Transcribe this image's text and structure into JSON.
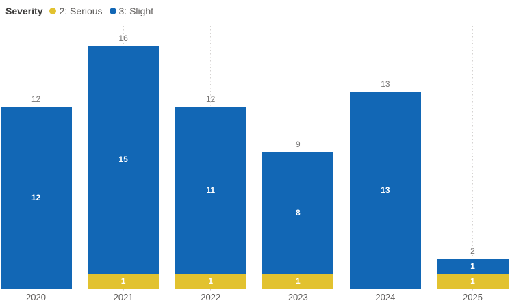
{
  "legend": {
    "title": "Severity",
    "items": [
      {
        "label": "2: Serious",
        "color": "#e2c22f"
      },
      {
        "label": "3: Slight",
        "color": "#1267b5"
      }
    ]
  },
  "chart_data": {
    "type": "bar",
    "stacked": true,
    "title": "",
    "xlabel": "",
    "ylabel": "",
    "categories": [
      "2020",
      "2021",
      "2022",
      "2023",
      "2024",
      "2025"
    ],
    "series": [
      {
        "name": "2: Serious",
        "color": "#e2c22f",
        "values": [
          0,
          1,
          1,
          1,
          0,
          1
        ]
      },
      {
        "name": "3: Slight",
        "color": "#1267b5",
        "values": [
          12,
          15,
          11,
          8,
          13,
          1
        ]
      }
    ],
    "totals": [
      12,
      16,
      12,
      9,
      13,
      2
    ],
    "ylim": [
      0,
      16
    ],
    "grid": "vertical-dotted",
    "legend_position": "top-left",
    "label_color_inside": "#ffffff",
    "label_color_total": "#777574"
  }
}
